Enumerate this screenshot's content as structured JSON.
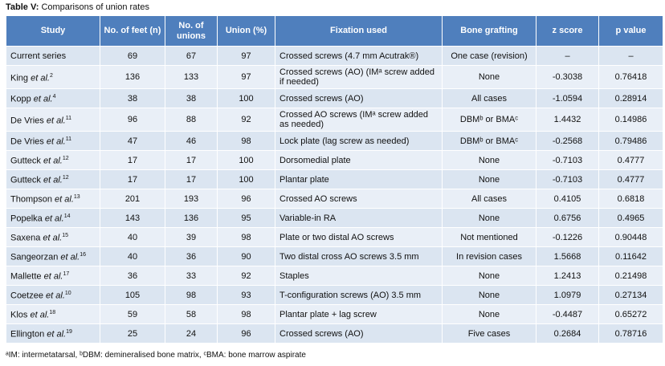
{
  "table": {
    "title": {
      "label": "Table V:",
      "text": "Comparisons of union rates"
    },
    "header": [
      "Study",
      "No. of feet (n)",
      "No. of unions",
      "Union (%)",
      "Fixation used",
      "Bone grafting",
      "z score",
      "p value"
    ],
    "rows": [
      [
        {
          "author": "Current series"
        },
        69,
        67,
        97,
        "Crossed screws (4.7 mm Acutrak®)",
        "One case (revision)",
        "–",
        "–"
      ],
      [
        {
          "author": "King",
          "etal": "et al.",
          "ref": "2"
        },
        136,
        133,
        97,
        "Crossed screws (AO) (IMᵃ screw added if needed)",
        "None",
        -0.3038,
        0.76418
      ],
      [
        {
          "author": "Kopp",
          "etal": "et al.",
          "ref": "4"
        },
        38,
        38,
        100,
        "Crossed screws (AO)",
        "All cases",
        -1.0594,
        0.28914
      ],
      [
        {
          "author": "De Vries",
          "etal": "et al.",
          "ref": "11"
        },
        96,
        88,
        92,
        "Crossed AO screws (IMᵃ screw added as needed)",
        "DBMᵇ or BMAᶜ",
        1.4432,
        0.14986
      ],
      [
        {
          "author": "De Vries",
          "etal": "et al.",
          "ref": "11"
        },
        47,
        46,
        98,
        "Lock plate (lag screw as needed)",
        "DBMᵇ or BMAᶜ",
        -0.2568,
        0.79486
      ],
      [
        {
          "author": "Gutteck",
          "etal": "et al.",
          "ref": "12"
        },
        17,
        17,
        100,
        "Dorsomedial plate",
        "None",
        -0.7103,
        0.4777
      ],
      [
        {
          "author": "Gutteck",
          "etal": "et al.",
          "ref": "12"
        },
        17,
        17,
        100,
        "Plantar plate",
        "None",
        -0.7103,
        0.4777
      ],
      [
        {
          "author": "Thompson",
          "etal": "et al.",
          "ref": "13"
        },
        201,
        193,
        96,
        "Crossed AO screws",
        "All cases",
        0.4105,
        0.6818
      ],
      [
        {
          "author": "Popelka",
          "etal": "et al.",
          "ref": "14"
        },
        143,
        136,
        95,
        "Variable-in RA",
        "None",
        0.6756,
        0.4965
      ],
      [
        {
          "author": "Saxena",
          "etal": "et al.",
          "ref": "15"
        },
        40,
        39,
        98,
        "Plate or two distal AO screws",
        "Not mentioned",
        -0.1226,
        0.90448
      ],
      [
        {
          "author": "Sangeorzan",
          "etal": "et al.",
          "ref": "16"
        },
        40,
        36,
        90,
        "Two distal cross AO screws 3.5 mm",
        "In revision cases",
        1.5668,
        0.11642
      ],
      [
        {
          "author": "Mallette",
          "etal": "et al.",
          "ref": "17"
        },
        36,
        33,
        92,
        "Staples",
        "None",
        1.2413,
        0.21498
      ],
      [
        {
          "author": "Coetzee",
          "etal": "et al.",
          "ref": "10"
        },
        105,
        98,
        93,
        "T-configuration screws (AO) 3.5 mm",
        "None",
        1.0979,
        0.27134
      ],
      [
        {
          "author": "Klos",
          "etal": "et al.",
          "ref": "18"
        },
        59,
        58,
        98,
        "Plantar plate + lag screw",
        "None",
        -0.4487,
        0.65272
      ],
      [
        {
          "author": "Ellington",
          "etal": "et al.",
          "ref": "19"
        },
        25,
        24,
        96,
        "Crossed screws (AO)",
        "Five cases",
        0.2684,
        0.78716
      ]
    ],
    "footnote": "ᵃIM: intermetatarsal, ᵇDBM: demineralised bone matrix, ᶜBMA: bone marrow aspirate"
  }
}
